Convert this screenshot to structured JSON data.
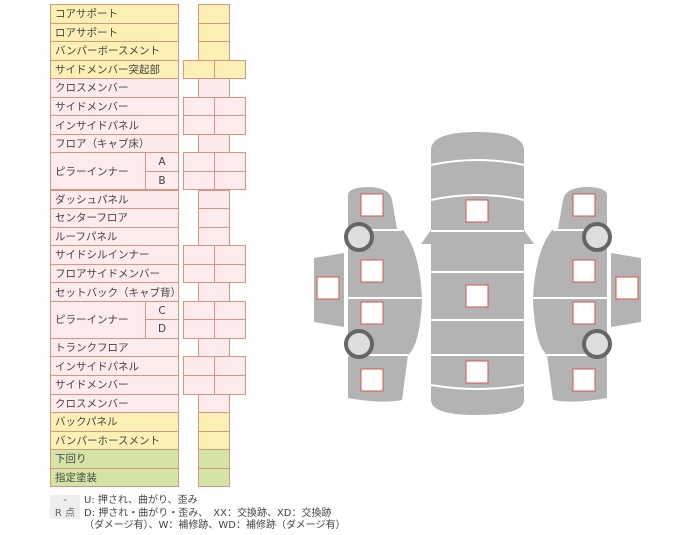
{
  "colors": {
    "yellow": "#fcf0b4",
    "pink": "#fdebee",
    "green": "#d3e4a6",
    "border": "#d9957f",
    "body": "#b3b3b3",
    "mark": "#d9534f"
  },
  "rows": [
    {
      "label": "コアサポート",
      "color": "yellow",
      "cells": 1
    },
    {
      "label": "ロアサポート",
      "color": "yellow",
      "cells": 1
    },
    {
      "label": "バンパーボースメント",
      "color": "yellow",
      "cells": 1
    },
    {
      "label": "サイドメンバー突起部",
      "color": "yellow",
      "cells": 2
    },
    {
      "label": "クロスメンバー",
      "color": "pink",
      "cells": 1
    },
    {
      "label": "サイドメンバー",
      "color": "pink",
      "cells": 2
    },
    {
      "label": "インサイドパネル",
      "color": "pink",
      "cells": 2
    },
    {
      "label": "フロア（キャブ床）",
      "color": "pink",
      "cells": 1
    },
    {
      "label": "ピラーインナー",
      "sub": "A",
      "color": "pink",
      "cells": 2,
      "span": 2
    },
    {
      "label": "",
      "sub": "B",
      "color": "pink",
      "cells": 2,
      "cont": true
    },
    {
      "label": "ダッシュパネル",
      "color": "pink",
      "cells": 1
    },
    {
      "label": "センターフロア",
      "color": "pink",
      "cells": 1
    },
    {
      "label": "ルーフパネル",
      "color": "pink",
      "cells": 1
    },
    {
      "label": "サイドシルインナー",
      "color": "pink",
      "cells": 2
    },
    {
      "label": "フロアサイドメンバー",
      "color": "pink",
      "cells": 2
    },
    {
      "label": "セットバック（キャブ背）",
      "color": "pink",
      "cells": 1
    },
    {
      "label": "ピラーインナー",
      "sub": "C",
      "color": "pink",
      "cells": 2,
      "span": 2
    },
    {
      "label": "",
      "sub": "D",
      "color": "pink",
      "cells": 2,
      "cont": true
    },
    {
      "label": "トランクフロア",
      "color": "pink",
      "cells": 1
    },
    {
      "label": "インサイドパネル",
      "color": "pink",
      "cells": 2
    },
    {
      "label": "サイドメンバー",
      "color": "pink",
      "cells": 2
    },
    {
      "label": "クロスメンバー",
      "color": "pink",
      "cells": 1
    },
    {
      "label": "バックパネル",
      "color": "yellow",
      "cells": 1
    },
    {
      "label": "バンパーホースメント",
      "color": "yellow",
      "cells": 1
    },
    {
      "label": "下回り",
      "color": "green",
      "cells": 1
    },
    {
      "label": "指定塗装",
      "color": "green",
      "cells": 1
    }
  ],
  "legend": [
    {
      "key": "-",
      "text": "U: 押され、曲がり、歪み"
    },
    {
      "key": "R 点",
      "text": "D: 押され・曲がり・歪み、　XX：交換跡、XD：交換跡"
    },
    {
      "key": "",
      "text": "（ダメージ有）、W：補修跡、WD：補修跡（ダメージ有）"
    }
  ],
  "diagram": {
    "icons": [
      "car-top-view",
      "car-left-side",
      "car-right-side",
      "wheel-icon"
    ]
  }
}
